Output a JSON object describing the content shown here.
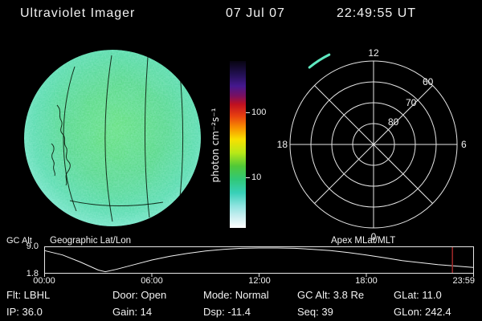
{
  "header": {
    "title": "Ultraviolet Imager",
    "date": "07 Jul 07",
    "time": "22:49:55 UT"
  },
  "colorbar": {
    "label": "photon cm⁻²s⁻¹",
    "tick_100": "100",
    "tick_10": "10"
  },
  "polar": {
    "mlt_top": "12",
    "mlt_left": "18",
    "mlt_right": "6",
    "mlt_bottom": "0",
    "lat_60": "60",
    "lat_70": "70",
    "lat_80": "80"
  },
  "orbit": {
    "ylabel": "GC Alt",
    "ytick_top": "9.0",
    "ytick_bottom": "1.8",
    "title_left": "Geographic Lat/Lon",
    "title_right": "Apex MLat/MLT",
    "xticks": [
      "00:00",
      "06:00",
      "12:00",
      "18:00",
      "23:59"
    ]
  },
  "status": {
    "row1": [
      "Flt: LBHL",
      "Door: Open",
      "Mode: Normal",
      "GC Alt: 3.8 Re",
      "GLat: 11.0"
    ],
    "row2": [
      "IP: 36.0",
      "Gain: 14",
      "Dsp: -11.4",
      "Seq: 39",
      "GLon: 242.4"
    ]
  },
  "colors": {
    "background": "#000000",
    "text": "#f2f2f2",
    "plot_line": "#e6e6e6",
    "time_marker": "#a02828",
    "data_mark": "#5fe8c0"
  },
  "chart_data": [
    {
      "type": "heatmap",
      "name": "uv-earth-disk",
      "title": "Full-disk ultraviolet image of Earth",
      "units": "photon cm⁻²s⁻¹",
      "scale": "log",
      "colorbar_ticks": [
        10,
        100
      ],
      "colorbar_colors": [
        "#070410 0%",
        "#221052 8%",
        "#45188f 15%",
        "#7a1060 21%",
        "#c01020 26%",
        "#e84010 33%",
        "#f89000 40%",
        "#f8e000 47%",
        "#b8e818 55%",
        "#50c838 63%",
        "#30c878 71%",
        "#38d0b8 79%",
        "#90e4e0 87%",
        "#c8eef0 93%",
        "#ffffff 100%"
      ],
      "disk_dominant_colors": [
        "#5fdf6a",
        "#4ed47e",
        "#7ce6cf"
      ],
      "typical_disk_value_range": [
        5,
        20
      ],
      "overlay": "geographic coastlines and lat/lon grid drawn as thin black lines"
    },
    {
      "type": "scatter",
      "name": "apex-mlat-mlt-dial",
      "title": "Apex MLat/MLT dial",
      "projection": "polar",
      "outer_mlat": 50,
      "rings_mlat": [
        80,
        70,
        60,
        50
      ],
      "ring_labels": [
        "80",
        "70",
        "60"
      ],
      "spokes_mlt": [
        0,
        3,
        6,
        9,
        12,
        15,
        18,
        21
      ],
      "mlt_axis_labels": [
        "12",
        "18",
        "6",
        "0"
      ],
      "points": [
        {
          "mlt": 14.2,
          "mlat": 42,
          "color": "#5fe8c0"
        }
      ]
    },
    {
      "type": "line",
      "name": "gc-alt-vs-time",
      "ylabel": "GC Alt",
      "y_units": "Re",
      "ylim": [
        1.8,
        9.0
      ],
      "yticks": [
        9.0,
        1.8
      ],
      "xticks": [
        "00:00",
        "06:00",
        "12:00",
        "18:00",
        "23:59"
      ],
      "x_hours": [
        0,
        1,
        2,
        3,
        3.4,
        4,
        5,
        6,
        7,
        8,
        9,
        10,
        11,
        12,
        13,
        14,
        15,
        16,
        17,
        18,
        19,
        20,
        21,
        22,
        23,
        23.98
      ],
      "y_re": [
        8.2,
        6.9,
        4.8,
        2.4,
        1.9,
        2.6,
        4.0,
        5.4,
        6.5,
        7.4,
        8.1,
        8.6,
        8.9,
        9.0,
        9.0,
        8.9,
        8.6,
        8.2,
        7.6,
        6.9,
        6.1,
        5.2,
        4.6,
        4.0,
        3.6,
        3.2
      ],
      "marker_hours": 22.82,
      "marker_label": "22:49:55 UT",
      "marker_color": "#a02828"
    }
  ]
}
